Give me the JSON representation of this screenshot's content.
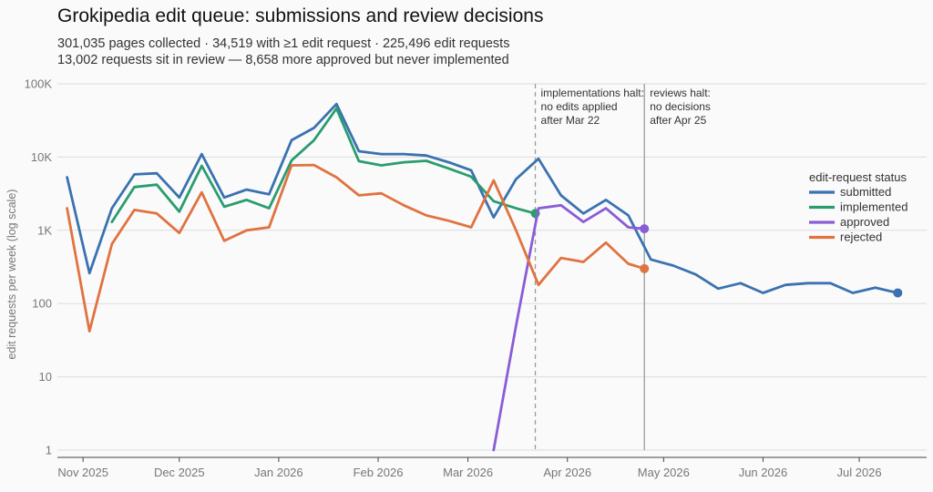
{
  "header": {
    "title": "Grokipedia edit queue: submissions and review decisions",
    "subtitle_line1": "301,035 pages collected · 34,519 with ≥1 edit request · 225,496 edit requests",
    "subtitle_line2": "13,002 requests sit in review — 8,658 more approved but never implemented"
  },
  "chart_data": {
    "type": "line",
    "ylabel": "edit requests per week (log scale)",
    "xlabel": "",
    "yscale": "log",
    "ylim": [
      1,
      100000
    ],
    "yticks": [
      {
        "value": 1,
        "label": "1"
      },
      {
        "value": 10,
        "label": "10"
      },
      {
        "value": 100,
        "label": "100"
      },
      {
        "value": 1000,
        "label": "1K"
      },
      {
        "value": 10000,
        "label": "10K"
      },
      {
        "value": 100000,
        "label": "100K"
      }
    ],
    "xlim": [
      "2025-10-24",
      "2026-07-22"
    ],
    "xticks": [
      {
        "date": "2025-11-01",
        "label": "Nov 2025"
      },
      {
        "date": "2025-12-01",
        "label": "Dec 2025"
      },
      {
        "date": "2026-01-01",
        "label": "Jan 2026"
      },
      {
        "date": "2026-02-01",
        "label": "Feb 2026"
      },
      {
        "date": "2026-03-01",
        "label": "Mar 2026"
      },
      {
        "date": "2026-04-01",
        "label": "Apr 2026"
      },
      {
        "date": "2026-05-01",
        "label": "May 2026"
      },
      {
        "date": "2026-06-01",
        "label": "Jun 2026"
      },
      {
        "date": "2026-07-01",
        "label": "Jul 2026"
      }
    ],
    "grid": true,
    "legend": {
      "title": "edit-request status",
      "position": "right"
    },
    "series": [
      {
        "name": "submitted",
        "color": "#3a72b0",
        "end_marker": true,
        "points": [
          [
            "2025-10-27",
            5300
          ],
          [
            "2025-11-03",
            260
          ],
          [
            "2025-11-10",
            2000
          ],
          [
            "2025-11-17",
            5800
          ],
          [
            "2025-11-24",
            6000
          ],
          [
            "2025-12-01",
            2800
          ],
          [
            "2025-12-08",
            11000
          ],
          [
            "2025-12-15",
            2800
          ],
          [
            "2025-12-22",
            3600
          ],
          [
            "2025-12-29",
            3100
          ],
          [
            "2026-01-05",
            17000
          ],
          [
            "2026-01-12",
            25000
          ],
          [
            "2026-01-19",
            53000
          ],
          [
            "2026-01-26",
            12000
          ],
          [
            "2026-02-02",
            11000
          ],
          [
            "2026-02-09",
            11000
          ],
          [
            "2026-02-16",
            10500
          ],
          [
            "2026-02-23",
            8500
          ],
          [
            "2026-03-02",
            6600
          ],
          [
            "2026-03-09",
            1500
          ],
          [
            "2026-03-16",
            5000
          ],
          [
            "2026-03-23",
            9500
          ],
          [
            "2026-03-30",
            3000
          ],
          [
            "2026-04-06",
            1700
          ],
          [
            "2026-04-13",
            2600
          ],
          [
            "2026-04-20",
            1600
          ],
          [
            "2026-04-27",
            400
          ],
          [
            "2026-05-04",
            330
          ],
          [
            "2026-05-11",
            250
          ],
          [
            "2026-05-18",
            160
          ],
          [
            "2026-05-25",
            190
          ],
          [
            "2026-06-01",
            140
          ],
          [
            "2026-06-08",
            180
          ],
          [
            "2026-06-15",
            190
          ],
          [
            "2026-06-22",
            190
          ],
          [
            "2026-06-29",
            140
          ],
          [
            "2026-07-06",
            165
          ],
          [
            "2026-07-13",
            140
          ]
        ]
      },
      {
        "name": "implemented",
        "color": "#2a9d6f",
        "end_marker": true,
        "points": [
          [
            "2025-11-10",
            1300
          ],
          [
            "2025-11-17",
            3900
          ],
          [
            "2025-11-24",
            4200
          ],
          [
            "2025-12-01",
            1800
          ],
          [
            "2025-12-08",
            7600
          ],
          [
            "2025-12-15",
            2100
          ],
          [
            "2025-12-22",
            2600
          ],
          [
            "2025-12-29",
            2000
          ],
          [
            "2026-01-05",
            9000
          ],
          [
            "2026-01-12",
            17000
          ],
          [
            "2026-01-19",
            46000
          ],
          [
            "2026-01-26",
            8800
          ],
          [
            "2026-02-02",
            7700
          ],
          [
            "2026-02-09",
            8500
          ],
          [
            "2026-02-16",
            8900
          ],
          [
            "2026-02-23",
            7000
          ],
          [
            "2026-03-02",
            5400
          ],
          [
            "2026-03-09",
            2500
          ],
          [
            "2026-03-16",
            2000
          ],
          [
            "2026-03-22",
            1700
          ]
        ]
      },
      {
        "name": "approved",
        "color": "#8a5cd6",
        "end_marker": true,
        "points": [
          [
            "2026-03-09",
            1
          ],
          [
            "2026-03-16",
            50
          ],
          [
            "2026-03-23",
            2000
          ],
          [
            "2026-03-30",
            2200
          ],
          [
            "2026-04-06",
            1300
          ],
          [
            "2026-04-13",
            2000
          ],
          [
            "2026-04-20",
            1100
          ],
          [
            "2026-04-25",
            1050
          ]
        ]
      },
      {
        "name": "rejected",
        "color": "#e0733f",
        "end_marker": true,
        "points": [
          [
            "2025-10-27",
            2000
          ],
          [
            "2025-11-03",
            42
          ],
          [
            "2025-11-10",
            650
          ],
          [
            "2025-11-17",
            1900
          ],
          [
            "2025-11-24",
            1700
          ],
          [
            "2025-12-01",
            920
          ],
          [
            "2025-12-08",
            3300
          ],
          [
            "2025-12-15",
            720
          ],
          [
            "2025-12-22",
            1000
          ],
          [
            "2025-12-29",
            1100
          ],
          [
            "2026-01-05",
            7700
          ],
          [
            "2026-01-12",
            7800
          ],
          [
            "2026-01-19",
            5300
          ],
          [
            "2026-01-26",
            3000
          ],
          [
            "2026-02-02",
            3200
          ],
          [
            "2026-02-09",
            2200
          ],
          [
            "2026-02-16",
            1600
          ],
          [
            "2026-02-23",
            1350
          ],
          [
            "2026-03-02",
            1100
          ],
          [
            "2026-03-09",
            4800
          ],
          [
            "2026-03-16",
            1000
          ],
          [
            "2026-03-23",
            180
          ],
          [
            "2026-03-30",
            420
          ],
          [
            "2026-04-06",
            370
          ],
          [
            "2026-04-13",
            680
          ],
          [
            "2026-04-20",
            350
          ],
          [
            "2026-04-25",
            300
          ]
        ]
      }
    ],
    "annotations": [
      {
        "date": "2026-03-22",
        "line_style": "dashed",
        "lines": [
          "implementations halt:",
          "no edits applied",
          "after Mar 22"
        ]
      },
      {
        "date": "2026-04-25",
        "line_style": "solid",
        "lines": [
          "reviews halt:",
          "no decisions",
          "after Apr 25"
        ]
      }
    ]
  }
}
